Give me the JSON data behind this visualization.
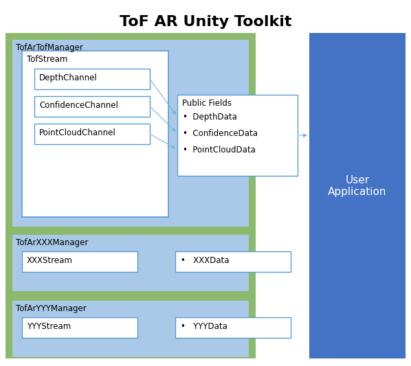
{
  "title": "ToF AR Unity Toolkit",
  "title_fontsize": 16,
  "title_fontweight": "bold",
  "bg_color": "#ffffff",
  "green_bg": "#8db96e",
  "light_blue_bg": "#aac9e8",
  "blue_sidebar": "#4472c4",
  "white_box": "#ffffff",
  "box_edge": "#5b9bd5",
  "text_color": "#000000",
  "sidebar_text": "User\nApplication",
  "sidebar_text_color": "#ffffff",
  "manager1_label": "TofArTofManager",
  "stream1_label": "TofStream",
  "channel1": "DepthChannel",
  "channel2": "ConfidenceChannel",
  "channel3": "PointCloudChannel",
  "public_fields_label": "Public Fields",
  "field1": "DepthData",
  "field2": "ConfidenceData",
  "field3": "PointCloudData",
  "manager2_label": "TofArXXXManager",
  "stream2_label": "XXXStream",
  "data2_label": "XXXData",
  "manager3_label": "TofArYYYManager",
  "stream3_label": "YYYStream",
  "data3_label": "YYYData",
  "arrow_color": "#7fb3d3"
}
